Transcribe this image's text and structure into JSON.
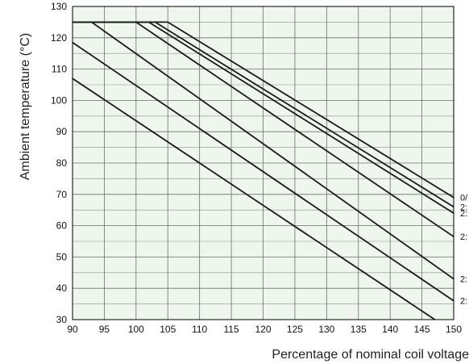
{
  "chart_data": {
    "type": "line",
    "xlabel": "Percentage of nominal coil voltage",
    "ylabel": "Ambient temperature (°C)",
    "xlim": [
      90,
      150
    ],
    "ylim": [
      30,
      130
    ],
    "x_ticks": [
      90,
      95,
      100,
      105,
      110,
      115,
      120,
      125,
      130,
      135,
      140,
      145,
      150
    ],
    "y_ticks": [
      30,
      40,
      50,
      60,
      70,
      80,
      90,
      100,
      110,
      120,
      130
    ],
    "grid": true,
    "colors": {
      "plot_background": "#eef6ee",
      "grid_line": "#6f6f6f",
      "series_line": "#1a1a1a",
      "axis": "#000000"
    },
    "series": [
      {
        "name": "0/",
        "points": [
          [
            90,
            125
          ],
          [
            105,
            125
          ],
          [
            150,
            69
          ]
        ]
      },
      {
        "name": "2:",
        "points": [
          [
            90,
            125
          ],
          [
            103,
            125
          ],
          [
            150,
            66
          ]
        ]
      },
      {
        "name": "2:",
        "points": [
          [
            90,
            125
          ],
          [
            102,
            125
          ],
          [
            150,
            64
          ]
        ]
      },
      {
        "name": "2:",
        "points": [
          [
            90,
            125
          ],
          [
            100,
            125
          ],
          [
            150,
            56.5
          ]
        ]
      },
      {
        "name": "2:",
        "points": [
          [
            93,
            125
          ],
          [
            150,
            43
          ]
        ]
      },
      {
        "name": "2:",
        "points": [
          [
            90,
            118.5
          ],
          [
            150,
            36
          ]
        ]
      },
      {
        "name": "",
        "points": [
          [
            90,
            107
          ],
          [
            150,
            26
          ]
        ]
      }
    ]
  }
}
